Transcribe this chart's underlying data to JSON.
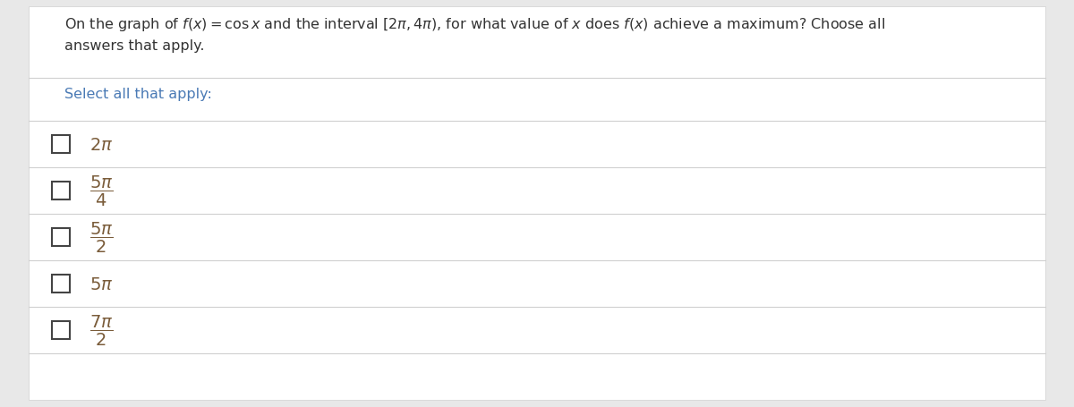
{
  "background_color": "#e8e8e8",
  "panel_color": "#ffffff",
  "text_color": "#333333",
  "option_color": "#7a5c3a",
  "blue_color": "#4a7ab5",
  "question_text_line1": "On the graph of $f(x) = \\cos x$ and the interval $[2\\pi, 4\\pi)$, for what value of $x$ does $f(x)$ achieve a maximum? Choose all",
  "question_text_line2": "answers that apply.",
  "select_label": "Select all that apply:",
  "options": [
    "$2\\pi$",
    "$\\dfrac{5\\pi}{4}$",
    "$\\dfrac{5\\pi}{2}$",
    "$5\\pi$",
    "$\\dfrac{7\\pi}{2}$"
  ],
  "divider_color": "#d0d0d0",
  "checkbox_color": "#444444",
  "figwidth": 12.0,
  "figheight": 4.56,
  "dpi": 100
}
